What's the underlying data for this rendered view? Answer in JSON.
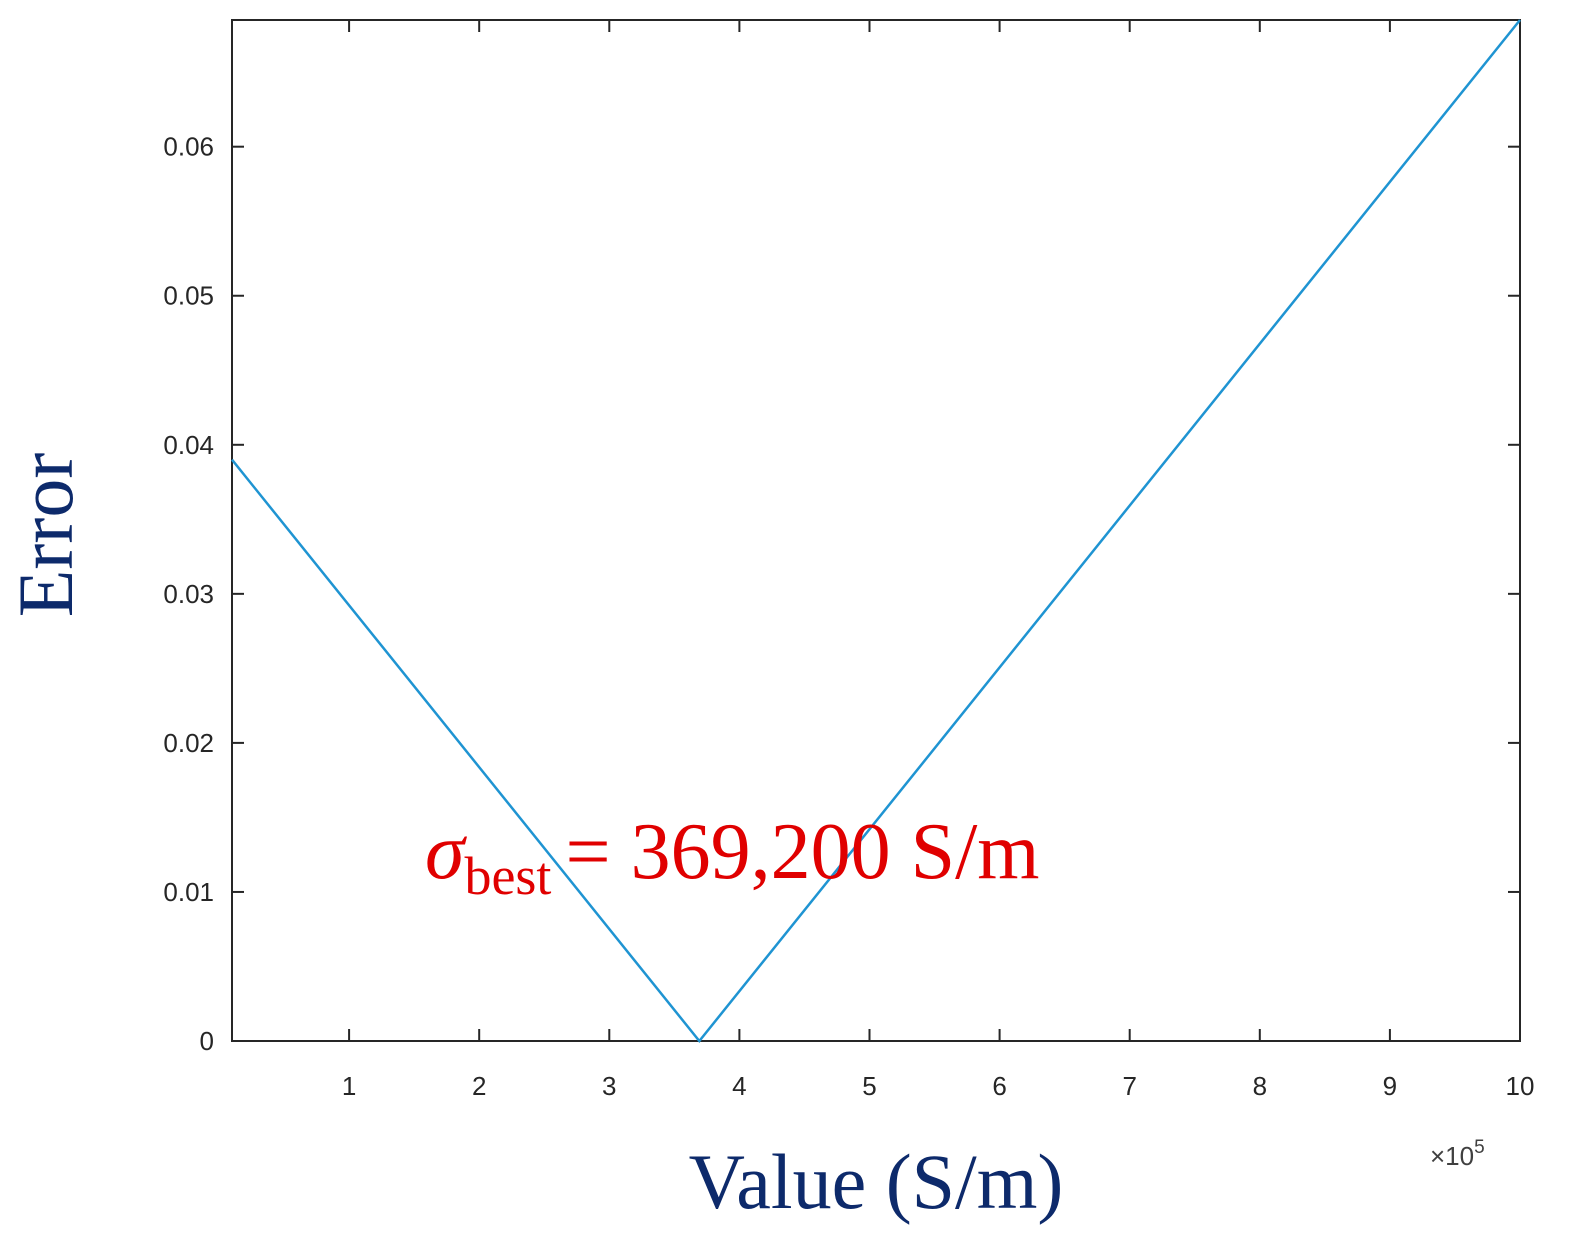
{
  "chart_data": {
    "type": "line",
    "x_label": "Value (S/m)",
    "y_label": "Error",
    "x_exponent_base": "×10",
    "x_exponent_power": "5",
    "annotation": {
      "symbol": "σ",
      "subscript": "best",
      "text": "= 369,200 S/m",
      "color": "#e00000"
    },
    "series": [
      {
        "name": "Error",
        "color": "#1f94d2",
        "x": [
          0.1,
          3.692,
          10
        ],
        "values": [
          0.039,
          0,
          0.0685
        ]
      }
    ],
    "xlim": [
      0.1,
      10
    ],
    "xticks": [
      1,
      2,
      3,
      4,
      5,
      6,
      7,
      8,
      9,
      10
    ],
    "ylim": [
      0,
      0.0685
    ],
    "yticks": [
      0,
      0.01,
      0.02,
      0.03,
      0.04,
      0.05,
      0.06
    ],
    "label_color": "#0d2a6b"
  }
}
